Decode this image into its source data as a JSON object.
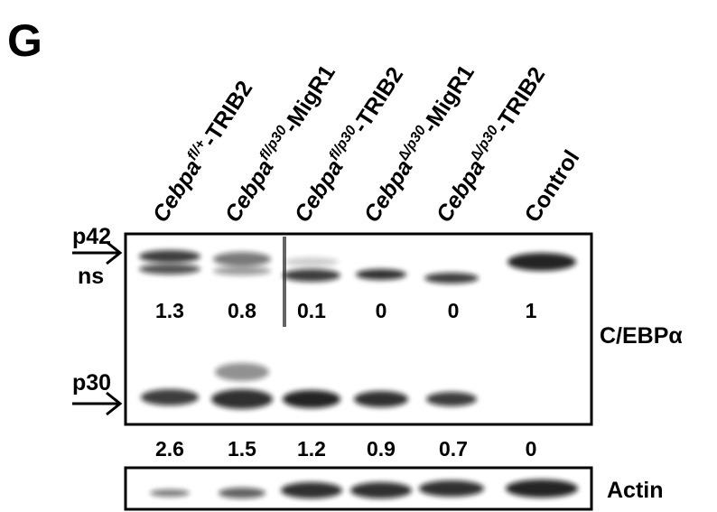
{
  "panel": "G",
  "lanes": [
    {
      "gene": "Cebpa",
      "genotype": "fl/+",
      "construct": "-TRIB2"
    },
    {
      "gene": "Cebpa",
      "genotype": "fl/p30",
      "construct": "-MigR1"
    },
    {
      "gene": "Cebpa",
      "genotype": "fl/p30",
      "construct": "-TRIB2"
    },
    {
      "gene": "Cebpa",
      "genotype": "∆/p30",
      "construct": "-MigR1"
    },
    {
      "gene": "Cebpa",
      "genotype": "∆/p30",
      "construct": "-TRIB2"
    },
    {
      "label": "Control"
    }
  ],
  "bands": {
    "p42": "p42",
    "ns": "ns",
    "p30": "p30"
  },
  "antibodies": {
    "cebpa": "C/EBPα",
    "actin": "Actin"
  },
  "quantification": {
    "p42": [
      1.3,
      0.8,
      0.1,
      0,
      0,
      1
    ],
    "p30": [
      2.6,
      1.5,
      1.2,
      0.9,
      0.7,
      0
    ]
  }
}
